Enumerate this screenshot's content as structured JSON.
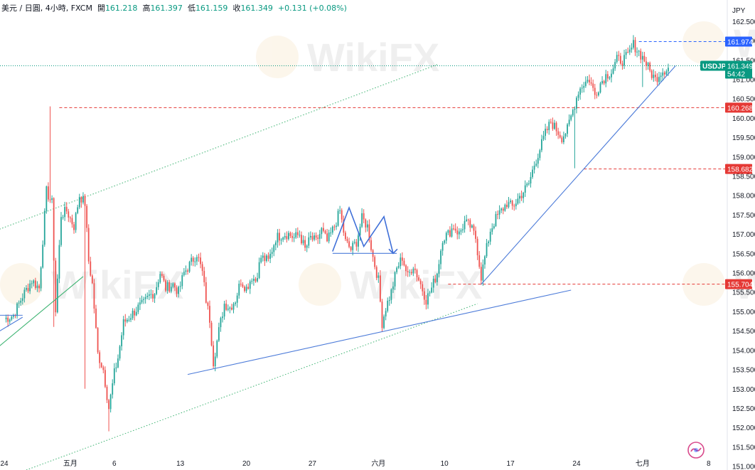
{
  "header": {
    "pair_title": "美元 / 日圓",
    "interval": "4小時",
    "source": "FXCM",
    "open_label": "開",
    "open_value": "161.218",
    "high_label": "高",
    "high_value": "161.397",
    "low_label": "低",
    "low_value": "161.159",
    "close_label": "收",
    "close_value": "161.349",
    "change": "+0.131 (+0.08%)"
  },
  "watermark": "WikiFX",
  "colors": {
    "up": "#26a69a",
    "down": "#ef5350",
    "trend": "#4c7bd9",
    "channel": "#3cb371",
    "level": "#e53935",
    "current": "#089981",
    "high_badge": "#2962ff"
  },
  "chart_data": {
    "type": "candlestick",
    "symbol": "USDJPY",
    "currency_label": "JPY",
    "y_ticks": [
      "151.000",
      "151.500",
      "152.000",
      "152.500",
      "153.000",
      "153.500",
      "154.000",
      "154.500",
      "155.000",
      "155.500",
      "156.000",
      "156.500",
      "157.000",
      "157.500",
      "158.000",
      "158.500",
      "159.000",
      "159.500",
      "160.000",
      "160.500",
      "161.000",
      "161.500",
      "162.000",
      "162.500"
    ],
    "ylim": [
      150.9,
      163.05
    ],
    "x_ticks": [
      {
        "label": "24",
        "i": 0
      },
      {
        "label": "五月",
        "i": 36
      },
      {
        "label": "6",
        "i": 60
      },
      {
        "label": "13",
        "i": 96
      },
      {
        "label": "20",
        "i": 132
      },
      {
        "label": "27",
        "i": 168
      },
      {
        "label": "六月",
        "i": 204
      },
      {
        "label": "10",
        "i": 240
      },
      {
        "label": "17",
        "i": 276
      },
      {
        "label": "24",
        "i": 312
      },
      {
        "label": "七月",
        "i": 348
      },
      {
        "label": "8",
        "i": 384
      }
    ],
    "levels": [
      {
        "value": 161.974,
        "label": "161.974",
        "from_i": 346,
        "color": "#2962ff"
      },
      {
        "value": 160.268,
        "label": "160.268",
        "from_i": 30,
        "color": "#e53935"
      },
      {
        "value": 158.682,
        "label": "158.682",
        "from_i": 316,
        "color": "#e53935"
      },
      {
        "value": 155.704,
        "label": "155.704",
        "from_i": 242,
        "color": "#e53935"
      }
    ],
    "current": {
      "label": "USDJPY",
      "price": "161.349",
      "countdown": "54:42",
      "value": 161.349
    },
    "trend_lines": [
      {
        "p1": [
          100,
          153.37
        ],
        "p2": [
          309,
          155.55
        ],
        "color": "#4c7bd9"
      },
      {
        "p1": [
          -4,
          154.45
        ],
        "p2": [
          10,
          154.85
        ],
        "color": "#4c7bd9"
      },
      {
        "p1": [
          260,
          155.7
        ],
        "p2": [
          366,
          161.35
        ],
        "color": "#4c7bd9"
      },
      {
        "p1": [
          179,
          156.5
        ],
        "p2": [
          214,
          156.5
        ],
        "color": "#4c7bd9"
      },
      {
        "p1": [
          -4,
          154.9
        ],
        "p2": [
          10,
          154.9
        ],
        "color": "#4c7bd9"
      },
      {
        "p1": [
          -4,
          154.05
        ],
        "p2": [
          43,
          155.9
        ],
        "color": "#3cb371"
      }
    ],
    "channel_lines": [
      {
        "p1": [
          -4,
          157.1
        ],
        "p2": [
          236,
          161.38
        ]
      },
      {
        "p1": [
          12,
          150.9
        ],
        "p2": [
          258,
          155.2
        ]
      }
    ],
    "dotted_line": {
      "value": 161.35
    },
    "zigzag": [
      [
        179,
        156.55
      ],
      [
        188,
        157.68
      ],
      [
        196,
        156.68
      ],
      [
        207,
        157.45
      ],
      [
        212,
        156.5
      ]
    ],
    "anchors": [
      [
        0,
        154.8
      ],
      [
        5,
        154.9
      ],
      [
        10,
        155.4
      ],
      [
        15,
        155.8
      ],
      [
        19,
        155.6
      ],
      [
        23,
        158.1
      ],
      [
        26,
        157.8
      ],
      [
        28,
        155.0
      ],
      [
        31,
        157.5
      ],
      [
        34,
        157.6
      ],
      [
        38,
        157.2
      ],
      [
        41,
        158.0
      ],
      [
        44,
        157.8
      ],
      [
        46,
        156.3
      ],
      [
        48,
        155.7
      ],
      [
        51,
        153.9
      ],
      [
        54,
        153.5
      ],
      [
        57,
        152.5
      ],
      [
        60,
        153.4
      ],
      [
        62,
        153.8
      ],
      [
        65,
        154.7
      ],
      [
        69,
        154.9
      ],
      [
        73,
        155.1
      ],
      [
        76,
        155.2
      ],
      [
        79,
        155.4
      ],
      [
        82,
        155.5
      ],
      [
        85,
        156.0
      ],
      [
        88,
        155.6
      ],
      [
        92,
        155.7
      ],
      [
        95,
        155.5
      ],
      [
        98,
        156.0
      ],
      [
        101,
        156.2
      ],
      [
        105,
        156.5
      ],
      [
        108,
        156.0
      ],
      [
        110,
        155.3
      ],
      [
        112,
        154.8
      ],
      [
        114,
        153.7
      ],
      [
        117,
        154.5
      ],
      [
        120,
        155.2
      ],
      [
        123,
        155.1
      ],
      [
        126,
        155.3
      ],
      [
        129,
        155.8
      ],
      [
        132,
        155.6
      ],
      [
        135,
        155.9
      ],
      [
        137,
        155.8
      ],
      [
        140,
        156.4
      ],
      [
        144,
        156.3
      ],
      [
        148,
        156.9
      ],
      [
        152,
        157.0
      ],
      [
        155,
        157.0
      ],
      [
        158,
        156.9
      ],
      [
        161,
        157.0
      ],
      [
        164,
        156.6
      ],
      [
        167,
        156.9
      ],
      [
        170,
        156.8
      ],
      [
        173,
        157.1
      ],
      [
        176,
        156.8
      ],
      [
        180,
        157.2
      ],
      [
        183,
        157.6
      ],
      [
        186,
        156.8
      ],
      [
        189,
        156.6
      ],
      [
        192,
        156.8
      ],
      [
        195,
        157.4
      ],
      [
        198,
        157.2
      ],
      [
        201,
        156.4
      ],
      [
        204,
        155.8
      ],
      [
        206,
        154.7
      ],
      [
        208,
        155.1
      ],
      [
        211,
        155.5
      ],
      [
        214,
        156.1
      ],
      [
        217,
        156.4
      ],
      [
        220,
        155.9
      ],
      [
        223,
        156.2
      ],
      [
        227,
        155.7
      ],
      [
        230,
        155.3
      ],
      [
        233,
        155.6
      ],
      [
        236,
        156.0
      ],
      [
        239,
        156.9
      ],
      [
        242,
        157.0
      ],
      [
        245,
        157.2
      ],
      [
        248,
        157.0
      ],
      [
        251,
        157.3
      ],
      [
        254,
        157.2
      ],
      [
        257,
        156.9
      ],
      [
        260,
        155.9
      ],
      [
        262,
        156.4
      ],
      [
        265,
        157.1
      ],
      [
        268,
        157.4
      ],
      [
        271,
        157.6
      ],
      [
        274,
        157.8
      ],
      [
        277,
        157.7
      ],
      [
        280,
        157.9
      ],
      [
        283,
        158.1
      ],
      [
        286,
        158.3
      ],
      [
        289,
        158.8
      ],
      [
        292,
        159.2
      ],
      [
        295,
        159.6
      ],
      [
        298,
        159.9
      ],
      [
        301,
        159.7
      ],
      [
        304,
        159.5
      ],
      [
        307,
        159.7
      ],
      [
        310,
        160.2
      ],
      [
        313,
        160.7
      ],
      [
        316,
        160.9
      ],
      [
        319,
        161.0
      ],
      [
        322,
        160.6
      ],
      [
        325,
        160.9
      ],
      [
        328,
        161.1
      ],
      [
        331,
        161.2
      ],
      [
        334,
        161.5
      ],
      [
        337,
        161.5
      ],
      [
        340,
        161.6
      ],
      [
        343,
        161.9
      ],
      [
        346,
        161.7
      ],
      [
        349,
        161.5
      ],
      [
        352,
        161.2
      ],
      [
        355,
        161.0
      ],
      [
        358,
        161.2
      ],
      [
        362,
        161.3
      ]
    ]
  }
}
